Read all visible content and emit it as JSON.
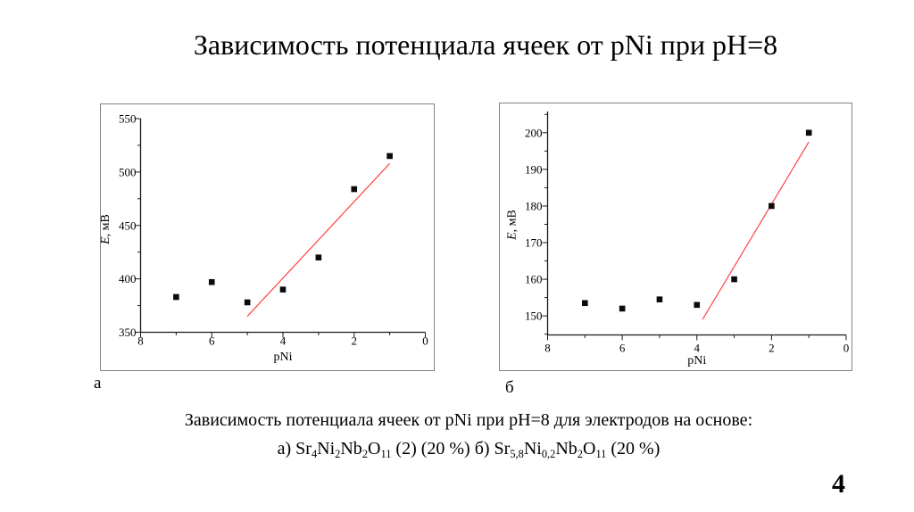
{
  "slide": {
    "title": "Зависимость потенциала ячеек от pNi при pH=8",
    "caption_line1": "Зависимость потенциала ячеек от pNi при pH=8 для электродов на основе:",
    "caption_line2_parts": [
      {
        "text": "а) Sr"
      },
      {
        "text": "4",
        "sub": true
      },
      {
        "text": "Ni"
      },
      {
        "text": "2",
        "sub": true
      },
      {
        "text": "Nb"
      },
      {
        "text": "2",
        "sub": true
      },
      {
        "text": "O"
      },
      {
        "text": "11",
        "sub": true
      },
      {
        "text": " (2) (20 %) б) Sr"
      },
      {
        "text": "5,8",
        "sub": true
      },
      {
        "text": "Ni"
      },
      {
        "text": "0,2",
        "sub": true
      },
      {
        "text": "Nb"
      },
      {
        "text": "2",
        "sub": true
      },
      {
        "text": "O"
      },
      {
        "text": "11",
        "sub": true
      },
      {
        "text": " (20 %)"
      }
    ],
    "panel_label_a": "а",
    "panel_label_b": "б",
    "page_number": "4",
    "background_color": "#ffffff"
  },
  "chart_data": [
    {
      "panel": "а",
      "type": "scatter",
      "xlabel": "pNi",
      "ylabel": "E, мВ",
      "ylabel_parts": [
        {
          "text": "E",
          "italic": true
        },
        {
          "text": ", мВ",
          "italic": false
        }
      ],
      "x_axis_reversed": true,
      "xlim": [
        8,
        0
      ],
      "ylim": [
        350,
        550
      ],
      "x_major_ticks": [
        8,
        6,
        4,
        2,
        0
      ],
      "x_minor_ticks": [
        7,
        5,
        3,
        1
      ],
      "y_major_ticks": [
        350,
        400,
        450,
        500,
        550
      ],
      "y_minor_ticks": [
        375,
        425,
        475,
        525
      ],
      "points": [
        [
          7,
          383
        ],
        [
          6,
          397
        ],
        [
          5,
          378
        ],
        [
          4,
          390
        ],
        [
          3,
          420
        ],
        [
          2,
          484
        ],
        [
          1,
          515
        ]
      ],
      "fit_line": {
        "from": [
          5,
          365
        ],
        "to": [
          1,
          508
        ]
      },
      "marker_color": "#0a0a0a",
      "line_color": "#ff4040",
      "frame_color": "#828282",
      "axis_color": "#1a1a1a"
    },
    {
      "panel": "б",
      "type": "scatter",
      "xlabel": "pNi",
      "ylabel": "E, мВ",
      "ylabel_parts": [
        {
          "text": "E",
          "italic": true
        },
        {
          "text": ", мВ",
          "italic": false
        }
      ],
      "x_axis_reversed": true,
      "xlim": [
        8,
        0
      ],
      "ylim": [
        144.8,
        205.8
      ],
      "x_major_ticks": [
        8,
        6,
        4,
        2,
        0
      ],
      "x_minor_ticks": [
        7,
        5,
        3,
        1
      ],
      "y_major_ticks": [
        150,
        160,
        170,
        180,
        190,
        200
      ],
      "y_minor_ticks": [
        145,
        155,
        165,
        175,
        185,
        195,
        205
      ],
      "points": [
        [
          7,
          153.5
        ],
        [
          6,
          152
        ],
        [
          5,
          154.5
        ],
        [
          4,
          153
        ],
        [
          3,
          160
        ],
        [
          2,
          180
        ],
        [
          1,
          200
        ]
      ],
      "fit_line": {
        "from": [
          3.85,
          149
        ],
        "to": [
          1,
          197.5
        ]
      },
      "marker_color": "#0a0a0a",
      "line_color": "#ff4040",
      "frame_color": "#828282",
      "axis_color": "#1a1a1a"
    }
  ]
}
